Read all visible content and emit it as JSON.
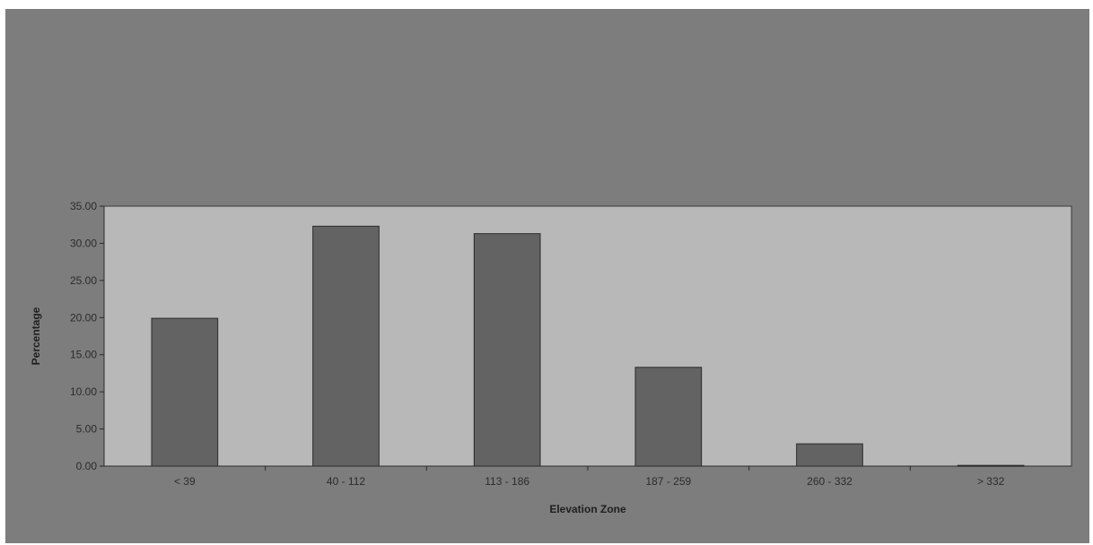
{
  "chart_data": {
    "type": "bar",
    "title": "",
    "xlabel": "Elevation Zone",
    "ylabel": "Percentage",
    "categories": [
      "< 39",
      "40 - 112",
      "113 - 186",
      "187 - 259",
      "260 - 332",
      "> 332"
    ],
    "values": [
      19.9,
      32.3,
      31.3,
      13.3,
      3.0,
      0.1
    ],
    "ylim": [
      0,
      35
    ],
    "yticks": [
      "0.00",
      "5.00",
      "10.00",
      "15.00",
      "20.00",
      "25.00",
      "30.00",
      "35.00"
    ],
    "grid": false,
    "legend": "none",
    "colors": {
      "background": "#7d7d7d",
      "plot_area": "#b8b8b8",
      "bar": "#636363",
      "bar_edge": "#2a2a2a"
    }
  }
}
